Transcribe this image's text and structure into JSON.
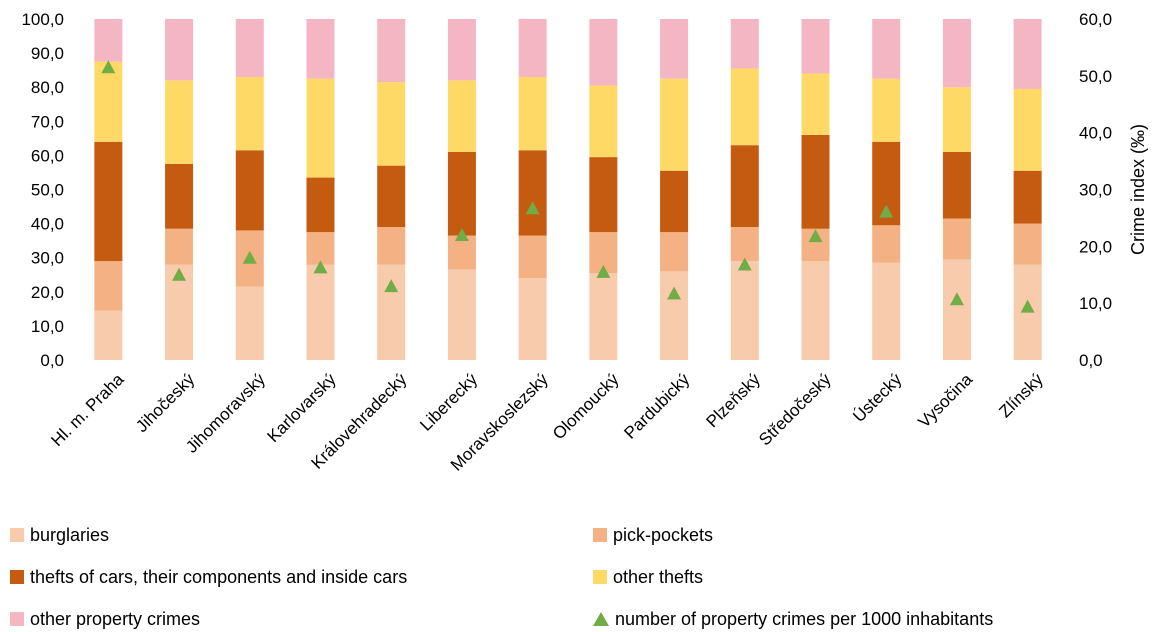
{
  "chart_data": {
    "type": "bar",
    "stacked": true,
    "categories": [
      "Hl. m. Praha",
      "Jihočeský",
      "Jihomoravský",
      "Karlovarský",
      "Královehradecký",
      "Liberecký",
      "Moravskoslezský",
      "Olomoucký",
      "Pardubický",
      "Plzeňský",
      "Středočeský",
      "Ústecký",
      "Vysočina",
      "Zlínský"
    ],
    "series": [
      {
        "name": "burglaries",
        "color": "#f8cbad",
        "values": [
          14.5,
          28.0,
          21.5,
          28.0,
          28.0,
          26.5,
          24.0,
          25.5,
          26.0,
          29.0,
          29.0,
          28.5,
          29.5,
          28.0
        ]
      },
      {
        "name": "pick-pockets",
        "color": "#f4b183",
        "values": [
          14.5,
          10.5,
          16.5,
          9.5,
          11.0,
          10.0,
          12.5,
          12.0,
          11.5,
          10.0,
          9.5,
          11.0,
          12.0,
          12.0
        ]
      },
      {
        "name": "thefts of cars, their components and inside cars",
        "color": "#c55a11",
        "values": [
          35.0,
          19.0,
          23.5,
          16.0,
          18.0,
          24.5,
          25.0,
          22.0,
          18.0,
          24.0,
          27.5,
          24.5,
          19.5,
          15.5
        ]
      },
      {
        "name": "other thefts",
        "color": "#ffd966",
        "values": [
          23.5,
          24.5,
          21.5,
          29.0,
          24.5,
          21.0,
          21.5,
          21.0,
          27.0,
          22.5,
          18.0,
          18.5,
          19.0,
          24.0
        ]
      },
      {
        "name": "other property crimes",
        "color": "#f4b6c2",
        "values": [
          12.5,
          18.0,
          17.0,
          17.5,
          18.5,
          18.0,
          17.0,
          19.5,
          17.5,
          14.5,
          16.0,
          17.5,
          20.0,
          20.5
        ]
      }
    ],
    "secondary_series": {
      "name": "number of property crimes per 1000 inhabitants",
      "color": "#70ad47",
      "marker": "triangle",
      "values": [
        51.5,
        15.0,
        18.0,
        16.3,
        13.0,
        22.0,
        26.7,
        15.5,
        11.7,
        16.8,
        21.8,
        26.1,
        10.7,
        9.4
      ]
    },
    "y_left": {
      "min": 0,
      "max": 100,
      "step": 10,
      "ticks": [
        "0,0",
        "10,0",
        "20,0",
        "30,0",
        "40,0",
        "50,0",
        "60,0",
        "70,0",
        "80,0",
        "90,0",
        "100,0"
      ]
    },
    "y_right": {
      "min": 0,
      "max": 60,
      "step": 10,
      "label": "Crime index (‰)",
      "ticks": [
        "0,0",
        "10,0",
        "20,0",
        "30,0",
        "40,0",
        "50,0",
        "60,0"
      ]
    },
    "title": "",
    "xlabel": "",
    "ylabel": "",
    "grid": false,
    "legend_position": "bottom"
  },
  "legend": {
    "items": [
      {
        "label": "burglaries",
        "color": "#f8cbad",
        "shape": "square"
      },
      {
        "label": "pick-pockets",
        "color": "#f4b183",
        "shape": "square"
      },
      {
        "label": "thefts of cars, their components and inside cars",
        "color": "#c55a11",
        "shape": "square"
      },
      {
        "label": "other thefts",
        "color": "#ffd966",
        "shape": "square"
      },
      {
        "label": "other property crimes",
        "color": "#f4b6c2",
        "shape": "square"
      },
      {
        "label": "number of property crimes per 1000 inhabitants",
        "color": "#70ad47",
        "shape": "triangle"
      }
    ]
  }
}
